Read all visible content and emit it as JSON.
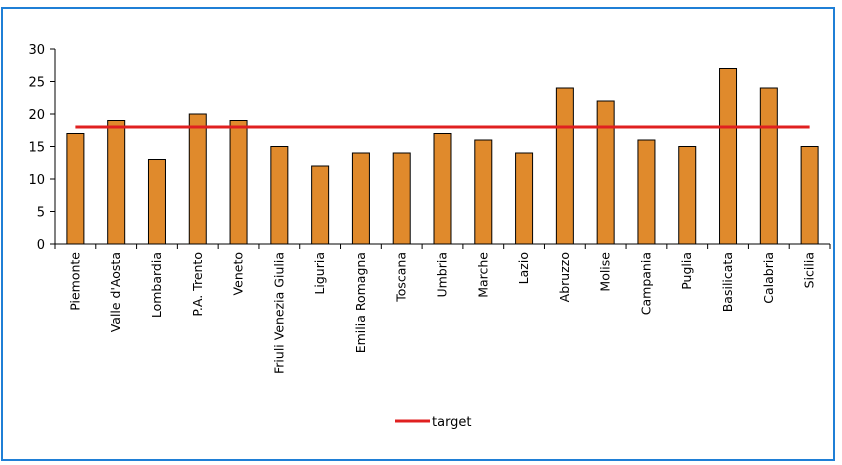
{
  "chart_data": {
    "type": "bar",
    "categories": [
      "Piemonte",
      "Valle d'Aosta",
      "Lombardia",
      "P.A. Trento",
      "Veneto",
      "Friuli Venezia Giulia",
      "Liguria",
      "Emilia Romagna",
      "Toscana",
      "Umbria",
      "Marche",
      "Lazio",
      "Abruzzo",
      "Molise",
      "Campania",
      "Puglia",
      "Basilicata",
      "Calabria",
      "Sicilia"
    ],
    "values": [
      17,
      19,
      13,
      20,
      19,
      15,
      12,
      14,
      14,
      17,
      16,
      14,
      24,
      22,
      16,
      15,
      27,
      24,
      15
    ],
    "ylim": [
      0,
      30
    ],
    "yticks": [
      0,
      5,
      10,
      15,
      20,
      25,
      30
    ],
    "grid": false,
    "bar_color": "#e08a2c",
    "target": {
      "name": "target",
      "value": 18,
      "color": "#e02020"
    },
    "legend": {
      "position": "bottom",
      "entries": [
        "target"
      ]
    }
  }
}
